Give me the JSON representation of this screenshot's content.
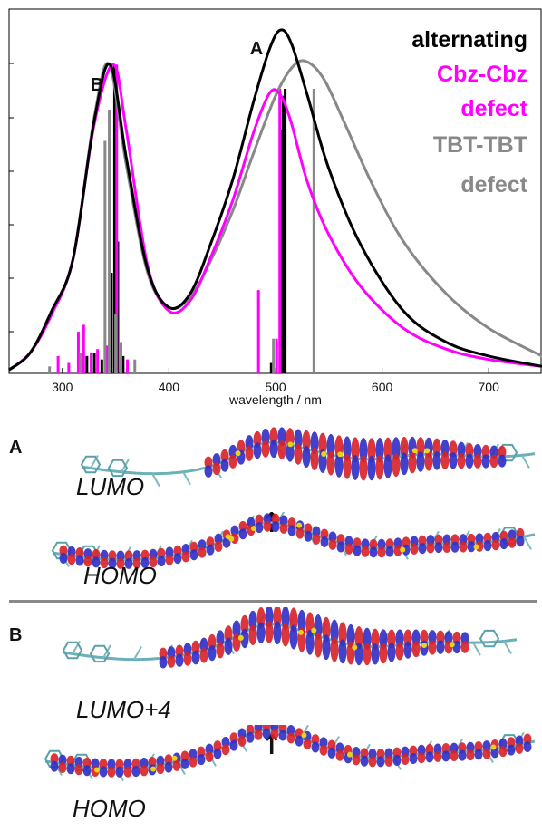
{
  "chart_data": {
    "type": "line",
    "xlabel": "wavelength / nm",
    "ylabel": "",
    "xlim": [
      250,
      750
    ],
    "ylim": [
      0,
      1.05
    ],
    "x_ticks": [
      "300",
      "400",
      "500",
      "600",
      "700"
    ],
    "peak_labels": [
      "A",
      "B"
    ],
    "legend": [
      "alternating",
      "Cbz-Cbz",
      "defect",
      "TBT-TBT",
      "defect"
    ],
    "colors": {
      "alternating": "#000000",
      "cbz": "#ff00ff",
      "tbt": "#888888"
    },
    "series": [
      {
        "name": "alternating",
        "color": "#000000",
        "x": [
          250,
          270,
          290,
          310,
          330,
          345,
          360,
          380,
          400,
          420,
          440,
          460,
          480,
          495,
          505,
          515,
          530,
          550,
          580,
          620,
          660,
          700,
          750
        ],
        "y": [
          0.01,
          0.06,
          0.18,
          0.33,
          0.73,
          0.89,
          0.62,
          0.3,
          0.19,
          0.23,
          0.38,
          0.56,
          0.79,
          0.94,
          0.99,
          0.95,
          0.8,
          0.59,
          0.37,
          0.18,
          0.09,
          0.05,
          0.02
        ]
      },
      {
        "name": "Cbz-Cbz defect",
        "color": "#ff00ff",
        "x": [
          250,
          270,
          290,
          310,
          330,
          348,
          360,
          380,
          400,
          420,
          440,
          460,
          480,
          495,
          505,
          515,
          530,
          550,
          580,
          620,
          660,
          700,
          750
        ],
        "y": [
          0.01,
          0.06,
          0.17,
          0.33,
          0.72,
          0.89,
          0.7,
          0.31,
          0.18,
          0.21,
          0.34,
          0.5,
          0.7,
          0.81,
          0.8,
          0.72,
          0.55,
          0.4,
          0.25,
          0.13,
          0.07,
          0.04,
          0.02
        ]
      },
      {
        "name": "TBT-TBT defect",
        "color": "#888888",
        "x": [
          250,
          270,
          290,
          310,
          330,
          344,
          360,
          380,
          400,
          420,
          440,
          460,
          480,
          500,
          515,
          528,
          545,
          565,
          590,
          620,
          660,
          700,
          750
        ],
        "y": [
          0.01,
          0.06,
          0.18,
          0.33,
          0.74,
          0.89,
          0.6,
          0.29,
          0.19,
          0.22,
          0.33,
          0.47,
          0.64,
          0.8,
          0.88,
          0.9,
          0.85,
          0.72,
          0.55,
          0.38,
          0.23,
          0.13,
          0.05
        ]
      }
    ],
    "sticks": [
      {
        "series": "alternating",
        "color": "#000000",
        "x": [
          323,
          330,
          337,
          343,
          346,
          349,
          352,
          357,
          496,
          505,
          507,
          509
        ],
        "y": [
          0.05,
          0.06,
          0.04,
          0.07,
          0.29,
          0.89,
          0.38,
          0.05,
          0.03,
          0.7,
          0.8,
          0.82
        ]
      },
      {
        "series": "Cbz-Cbz defect",
        "color": "#ff00ff",
        "x": [
          296,
          306,
          315,
          320,
          327,
          333,
          342,
          351,
          361,
          484,
          501,
          504
        ],
        "y": [
          0.05,
          0.03,
          0.12,
          0.14,
          0.06,
          0.07,
          0.08,
          0.89,
          0.04,
          0.24,
          0.1,
          0.82
        ]
      },
      {
        "series": "TBT-TBT defect",
        "color": "#888888",
        "x": [
          288,
          317,
          340,
          344,
          350,
          355,
          368,
          498,
          536
        ],
        "y": [
          0.02,
          0.06,
          0.67,
          0.76,
          0.17,
          0.09,
          0.04,
          0.1,
          0.82
        ]
      }
    ]
  },
  "orbitals": {
    "panel_a_letter": "A",
    "panel_b_letter": "B",
    "a_upper_label": "LUMO",
    "a_lower_label": "HOMO",
    "b_upper_label": "LUMO+4",
    "b_lower_label": "HOMO",
    "arrow_symbol": "↑"
  }
}
